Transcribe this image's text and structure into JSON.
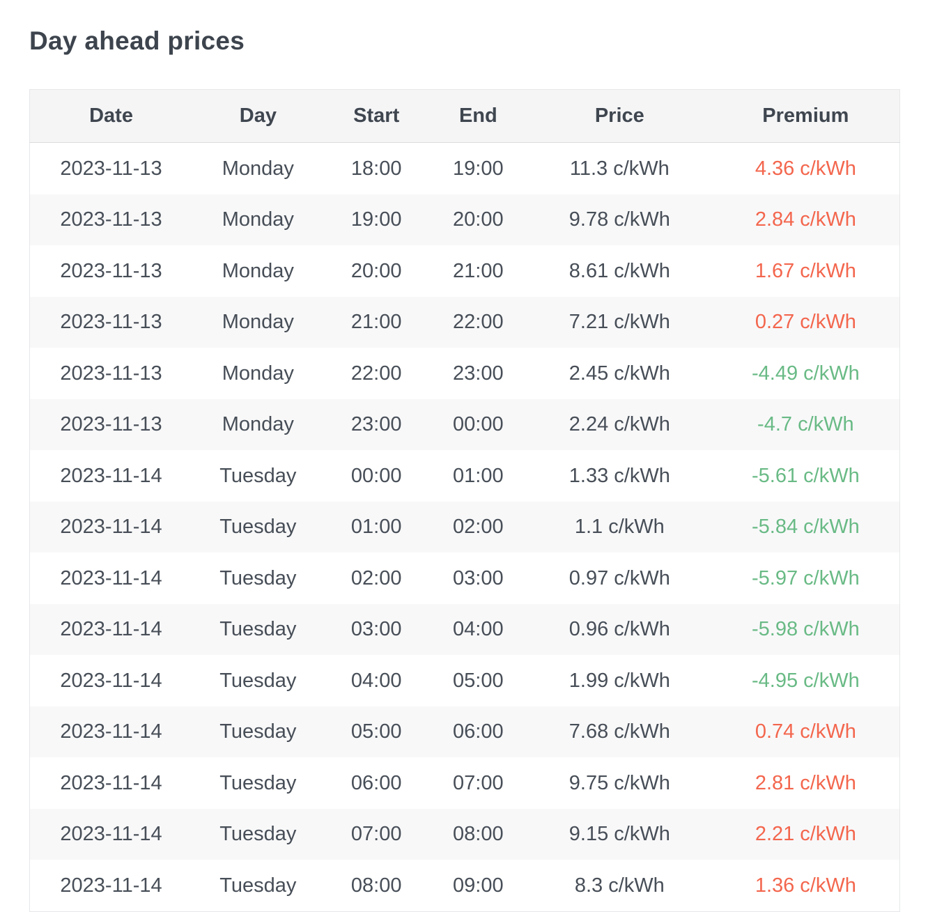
{
  "title": "Day ahead prices",
  "colors": {
    "premium_positive": "#f3664d",
    "premium_negative": "#69ba85"
  },
  "table": {
    "headers": [
      "Date",
      "Day",
      "Start",
      "End",
      "Price",
      "Premium"
    ],
    "rows": [
      {
        "date": "2023-11-13",
        "day": "Monday",
        "start": "18:00",
        "end": "19:00",
        "price": "11.3 c/kWh",
        "premium": "4.36 c/kWh",
        "premium_trend": "positive"
      },
      {
        "date": "2023-11-13",
        "day": "Monday",
        "start": "19:00",
        "end": "20:00",
        "price": "9.78 c/kWh",
        "premium": "2.84 c/kWh",
        "premium_trend": "positive"
      },
      {
        "date": "2023-11-13",
        "day": "Monday",
        "start": "20:00",
        "end": "21:00",
        "price": "8.61 c/kWh",
        "premium": "1.67 c/kWh",
        "premium_trend": "positive"
      },
      {
        "date": "2023-11-13",
        "day": "Monday",
        "start": "21:00",
        "end": "22:00",
        "price": "7.21 c/kWh",
        "premium": "0.27 c/kWh",
        "premium_trend": "positive"
      },
      {
        "date": "2023-11-13",
        "day": "Monday",
        "start": "22:00",
        "end": "23:00",
        "price": "2.45 c/kWh",
        "premium": "-4.49 c/kWh",
        "premium_trend": "negative"
      },
      {
        "date": "2023-11-13",
        "day": "Monday",
        "start": "23:00",
        "end": "00:00",
        "price": "2.24 c/kWh",
        "premium": "-4.7 c/kWh",
        "premium_trend": "negative"
      },
      {
        "date": "2023-11-14",
        "day": "Tuesday",
        "start": "00:00",
        "end": "01:00",
        "price": "1.33 c/kWh",
        "premium": "-5.61 c/kWh",
        "premium_trend": "negative"
      },
      {
        "date": "2023-11-14",
        "day": "Tuesday",
        "start": "01:00",
        "end": "02:00",
        "price": "1.1 c/kWh",
        "premium": "-5.84 c/kWh",
        "premium_trend": "negative"
      },
      {
        "date": "2023-11-14",
        "day": "Tuesday",
        "start": "02:00",
        "end": "03:00",
        "price": "0.97 c/kWh",
        "premium": "-5.97 c/kWh",
        "premium_trend": "negative"
      },
      {
        "date": "2023-11-14",
        "day": "Tuesday",
        "start": "03:00",
        "end": "04:00",
        "price": "0.96 c/kWh",
        "premium": "-5.98 c/kWh",
        "premium_trend": "negative"
      },
      {
        "date": "2023-11-14",
        "day": "Tuesday",
        "start": "04:00",
        "end": "05:00",
        "price": "1.99 c/kWh",
        "premium": "-4.95 c/kWh",
        "premium_trend": "negative"
      },
      {
        "date": "2023-11-14",
        "day": "Tuesday",
        "start": "05:00",
        "end": "06:00",
        "price": "7.68 c/kWh",
        "premium": "0.74 c/kWh",
        "premium_trend": "positive"
      },
      {
        "date": "2023-11-14",
        "day": "Tuesday",
        "start": "06:00",
        "end": "07:00",
        "price": "9.75 c/kWh",
        "premium": "2.81 c/kWh",
        "premium_trend": "positive"
      },
      {
        "date": "2023-11-14",
        "day": "Tuesday",
        "start": "07:00",
        "end": "08:00",
        "price": "9.15 c/kWh",
        "premium": "2.21 c/kWh",
        "premium_trend": "positive"
      },
      {
        "date": "2023-11-14",
        "day": "Tuesday",
        "start": "08:00",
        "end": "09:00",
        "price": "8.3 c/kWh",
        "premium": "1.36 c/kWh",
        "premium_trend": "positive"
      }
    ]
  }
}
